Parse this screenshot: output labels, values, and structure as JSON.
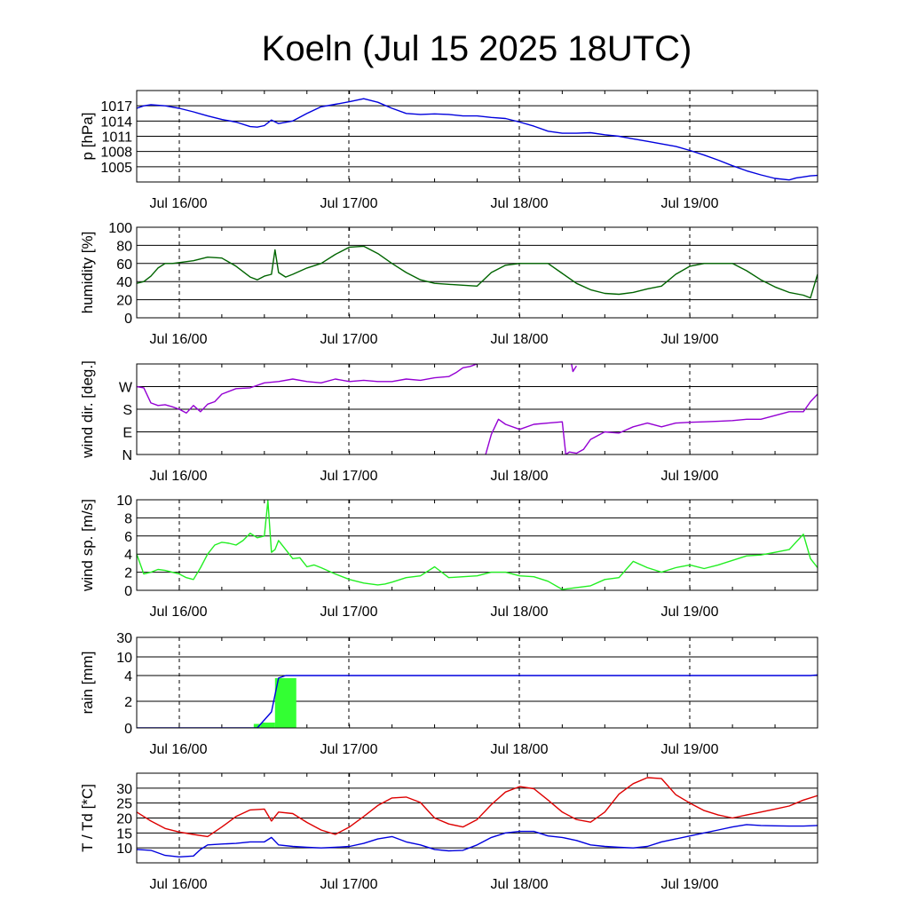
{
  "title": "Koeln (Jul 15 2025 18UTC)",
  "colors": {
    "pressure": "#0000dd",
    "humidity": "#006400",
    "wind_dir": "#9400d3",
    "wind_speed": "#22ee22",
    "rain_bar": "#33ff33",
    "rain_line": "#0000dd",
    "temperature": "#dd0000",
    "dewpoint": "#0000dd"
  },
  "chart_data": [
    {
      "type": "line",
      "ylabel": "p [hPa]",
      "x_unit": "hours since Jul 15 18UTC",
      "xlim": [
        0,
        96
      ],
      "ylim": [
        1002,
        1020
      ],
      "yticks": [
        1005,
        1008,
        1011,
        1014,
        1017
      ],
      "ytick_labels": [
        "1005",
        "1008",
        "1011",
        "1014",
        "1017"
      ],
      "x_tick_labels": [
        "Jul 16/00",
        "Jul 17/00",
        "Jul 18/00",
        "Jul 19/00"
      ],
      "series": [
        {
          "color_key": "pressure",
          "x": [
            0,
            1,
            2,
            4,
            6,
            8,
            10,
            12,
            14,
            16,
            17,
            18,
            19,
            20,
            22,
            24,
            26,
            28,
            30,
            32,
            34,
            36,
            38,
            40,
            42,
            44,
            46,
            48,
            50,
            52,
            54,
            56,
            58,
            60,
            62,
            64,
            66,
            68,
            70,
            72,
            74,
            76,
            78,
            80,
            82,
            84,
            86,
            88,
            90,
            92,
            93,
            94,
            95,
            96
          ],
          "y": [
            1016.5,
            1017.0,
            1017.2,
            1017.0,
            1016.5,
            1015.8,
            1015.0,
            1014.3,
            1013.8,
            1012.9,
            1012.8,
            1013.1,
            1014.2,
            1013.5,
            1014.0,
            1015.5,
            1016.8,
            1017.3,
            1017.8,
            1018.4,
            1017.7,
            1016.5,
            1015.5,
            1015.3,
            1015.4,
            1015.3,
            1015.0,
            1015.0,
            1014.7,
            1014.5,
            1013.8,
            1013.0,
            1012.0,
            1011.6,
            1011.6,
            1011.7,
            1011.3,
            1011.0,
            1010.5,
            1010.0,
            1009.5,
            1009.0,
            1008.2,
            1007.3,
            1006.3,
            1005.2,
            1004.2,
            1003.4,
            1002.7,
            1002.4,
            1002.8,
            1003.0,
            1003.2,
            1003.3
          ]
        }
      ]
    },
    {
      "type": "line",
      "ylabel": "humidity [%]",
      "x_unit": "hours since Jul 15 18UTC",
      "xlim": [
        0,
        96
      ],
      "ylim": [
        0,
        100
      ],
      "yticks": [
        0,
        20,
        40,
        60,
        80,
        100
      ],
      "ytick_labels": [
        "0",
        "20",
        "40",
        "60",
        "80",
        "100"
      ],
      "x_tick_labels": [
        "Jul 16/00",
        "Jul 17/00",
        "Jul 18/00",
        "Jul 19/00"
      ],
      "series": [
        {
          "color_key": "humidity",
          "x": [
            0,
            1,
            2,
            3,
            4,
            5,
            6,
            8,
            10,
            12,
            14,
            16,
            17,
            18,
            19,
            19.5,
            20,
            21,
            22,
            24,
            26,
            28,
            30,
            32,
            34,
            36,
            38,
            40,
            42,
            44,
            46,
            48,
            50,
            52,
            54,
            56,
            58,
            60,
            62,
            64,
            66,
            68,
            70,
            72,
            74,
            76,
            78,
            80,
            82,
            84,
            86,
            88,
            90,
            92,
            94,
            95,
            96
          ],
          "y": [
            38,
            40,
            46,
            55,
            60,
            60,
            61,
            63,
            67,
            66,
            57,
            45,
            42,
            46,
            48,
            75,
            50,
            45,
            48,
            55,
            60,
            70,
            78,
            79,
            71,
            60,
            50,
            42,
            38,
            37,
            36,
            35,
            50,
            58,
            60,
            60,
            60,
            49,
            38,
            31,
            27,
            26,
            28,
            32,
            35,
            48,
            57,
            60,
            60,
            60,
            52,
            42,
            34,
            28,
            25,
            22,
            48
          ]
        }
      ]
    },
    {
      "type": "line",
      "ylabel": "wind dir. [deg.]",
      "x_unit": "hours since Jul 15 18UTC",
      "xlim": [
        0,
        96
      ],
      "ylim": [
        0,
        360
      ],
      "yticks": [
        0,
        90,
        180,
        270
      ],
      "ytick_labels": [
        "N",
        "E",
        "S",
        "W"
      ],
      "x_tick_labels": [
        "Jul 16/00",
        "Jul 17/00",
        "Jul 18/00",
        "Jul 19/00"
      ],
      "series": [
        {
          "color_key": "wind_dir",
          "x": [
            0,
            1,
            2,
            3,
            4,
            5,
            6,
            7,
            8,
            9,
            10,
            11,
            12,
            14,
            16,
            18,
            20,
            22,
            24,
            26,
            28,
            30,
            32,
            34,
            36,
            38,
            40,
            42,
            44,
            45,
            46,
            47,
            48
          ],
          "y": [
            270,
            265,
            205,
            195,
            198,
            190,
            180,
            165,
            195,
            170,
            200,
            210,
            240,
            262,
            265,
            285,
            290,
            300,
            290,
            285,
            300,
            290,
            295,
            290,
            290,
            300,
            295,
            305,
            310,
            325,
            345,
            350,
            360
          ]
        },
        {
          "color_key": "wind_dir",
          "x": [
            49.2,
            50,
            51,
            52,
            54,
            56,
            58,
            60,
            60.5,
            61,
            62,
            63,
            64,
            66,
            68,
            70,
            72,
            74,
            76,
            78,
            80,
            82,
            84,
            86,
            88,
            90,
            92,
            94,
            95,
            96
          ],
          "y": [
            0,
            80,
            140,
            120,
            100,
            120,
            125,
            130,
            0,
            10,
            5,
            20,
            60,
            90,
            85,
            110,
            125,
            110,
            125,
            128,
            130,
            132,
            135,
            140,
            140,
            155,
            170,
            170,
            210,
            240
          ]
        },
        {
          "color_key": "wind_dir",
          "x": [
            61.3,
            61.5,
            62
          ],
          "y": [
            360,
            330,
            352
          ]
        }
      ]
    },
    {
      "type": "line",
      "ylabel": "wind sp. [m/s]",
      "x_unit": "hours since Jul 15 18UTC",
      "xlim": [
        0,
        96
      ],
      "ylim": [
        0,
        10
      ],
      "yticks": [
        0,
        2,
        4,
        6,
        8,
        10
      ],
      "ytick_labels": [
        "0",
        "2",
        "4",
        "6",
        "8",
        "10"
      ],
      "x_tick_labels": [
        "Jul 16/00",
        "Jul 17/00",
        "Jul 18/00",
        "Jul 19/00"
      ],
      "series": [
        {
          "color_key": "wind_speed",
          "x": [
            0,
            1,
            2,
            3,
            4,
            5,
            6,
            7,
            8,
            9,
            10,
            11,
            12,
            13,
            14,
            15,
            16,
            17,
            18,
            18.5,
            19,
            19.5,
            20,
            21,
            22,
            23,
            24,
            25,
            26,
            28,
            30,
            32,
            34,
            35,
            36,
            38,
            40,
            42,
            44,
            46,
            48,
            50,
            52,
            54,
            56,
            58,
            60,
            62,
            64,
            66,
            68,
            70,
            72,
            74,
            76,
            78,
            80,
            82,
            84,
            86,
            88,
            90,
            92,
            94,
            95,
            96
          ],
          "y": [
            4,
            1.8,
            2.0,
            2.3,
            2.2,
            2.0,
            1.8,
            1.4,
            1.2,
            2.5,
            4.0,
            5.0,
            5.3,
            5.2,
            5.0,
            5.5,
            6.3,
            5.8,
            6.0,
            9.9,
            4.2,
            4.5,
            5.5,
            4.5,
            3.5,
            3.6,
            2.6,
            2.8,
            2.5,
            1.8,
            1.2,
            0.8,
            0.6,
            0.7,
            0.9,
            1.4,
            1.6,
            2.6,
            1.4,
            1.5,
            1.6,
            2.0,
            2.0,
            1.6,
            1.5,
            1.0,
            0.1,
            0.3,
            0.5,
            1.2,
            1.4,
            3.2,
            2.5,
            2.0,
            2.5,
            2.8,
            2.4,
            2.8,
            3.3,
            3.8,
            3.9,
            4.2,
            4.5,
            6.2,
            3.5,
            2.5
          ]
        }
      ]
    },
    {
      "type": "bar+line",
      "ylabel": "rain [mm]",
      "x_unit": "hours since Jul 15 18UTC",
      "xlim": [
        0,
        96
      ],
      "ylim": [
        0,
        30
      ],
      "yticks": [
        0,
        2,
        4,
        10,
        30
      ],
      "ytick_labels": [
        "0",
        "2",
        "4",
        "10",
        "30"
      ],
      "x_tick_labels": [
        "Jul 16/00",
        "Jul 17/00",
        "Jul 18/00",
        "Jul 19/00"
      ],
      "bars": [
        {
          "x0": 16.5,
          "x1": 17.5,
          "value": 0.3
        },
        {
          "x0": 17.5,
          "x1": 19.5,
          "value": 0.4
        },
        {
          "x0": 19.5,
          "x1": 22.5,
          "value": 3.8
        }
      ],
      "series": [
        {
          "color_key": "rain_line",
          "x": [
            0,
            17,
            18,
            19,
            19.5,
            20,
            21,
            30,
            40,
            50,
            60,
            70,
            80,
            90,
            95,
            96
          ],
          "y": [
            0,
            0,
            0.6,
            1.2,
            2.5,
            3.8,
            4.0,
            4.0,
            4.0,
            4.0,
            4.0,
            4.0,
            4.0,
            4.0,
            4.0,
            4.2
          ]
        }
      ]
    },
    {
      "type": "line",
      "ylabel": "T / Td [*C]",
      "x_unit": "hours since Jul 15 18UTC",
      "xlim": [
        0,
        96
      ],
      "ylim": [
        5,
        35
      ],
      "yticks": [
        10,
        15,
        20,
        25,
        30
      ],
      "ytick_labels": [
        "10",
        "15",
        "20",
        "25",
        "30"
      ],
      "x_tick_labels": [
        "Jul 16/00",
        "Jul 17/00",
        "Jul 18/00",
        "Jul 19/00"
      ],
      "series": [
        {
          "name_key": "T",
          "color_key": "temperature",
          "x": [
            0,
            2,
            4,
            6,
            8,
            10,
            12,
            14,
            16,
            18,
            19,
            20,
            22,
            24,
            26,
            28,
            30,
            32,
            34,
            36,
            38,
            40,
            42,
            44,
            46,
            48,
            50,
            52,
            54,
            56,
            58,
            60,
            62,
            64,
            66,
            68,
            70,
            72,
            74,
            76,
            78,
            80,
            82,
            84,
            86,
            88,
            90,
            92,
            94,
            96
          ],
          "y": [
            22,
            19,
            16.5,
            15.3,
            14.5,
            13.8,
            17,
            20.5,
            22.7,
            23,
            19,
            22,
            21.5,
            18.5,
            16,
            14.5,
            17,
            20.5,
            24.2,
            26.7,
            27,
            25.2,
            20,
            18,
            17,
            19.5,
            24.5,
            28.7,
            30.5,
            29.8,
            26,
            22,
            19.5,
            18.6,
            22,
            28,
            31.5,
            33.5,
            33.2,
            27.8,
            25,
            22.5,
            21,
            20,
            21,
            22,
            23,
            24,
            26,
            27.5
          ]
        },
        {
          "name_key": "Td",
          "color_key": "dewpoint",
          "x": [
            0,
            2,
            4,
            6,
            8,
            9,
            10,
            12,
            14,
            16,
            18,
            19,
            20,
            22,
            24,
            26,
            28,
            30,
            32,
            34,
            36,
            38,
            40,
            42,
            44,
            46,
            48,
            50,
            52,
            54,
            56,
            58,
            60,
            62,
            64,
            66,
            68,
            70,
            72,
            74,
            76,
            78,
            80,
            82,
            84,
            86,
            88,
            90,
            92,
            94,
            96
          ],
          "y": [
            9.5,
            9.2,
            7.5,
            7.0,
            7.3,
            9.5,
            11,
            11.3,
            11.5,
            12,
            12,
            13.5,
            11,
            10.5,
            10.2,
            10,
            10.2,
            10.5,
            11.5,
            13,
            13.8,
            12,
            11,
            9.5,
            9,
            9.2,
            11,
            13.5,
            15,
            15.5,
            15.5,
            14,
            13.5,
            12.5,
            11,
            10.5,
            10.2,
            10,
            10.5,
            12,
            13,
            14,
            15,
            16,
            17,
            17.8,
            17.5,
            17.4,
            17.3,
            17.3,
            17.5
          ]
        }
      ]
    }
  ]
}
